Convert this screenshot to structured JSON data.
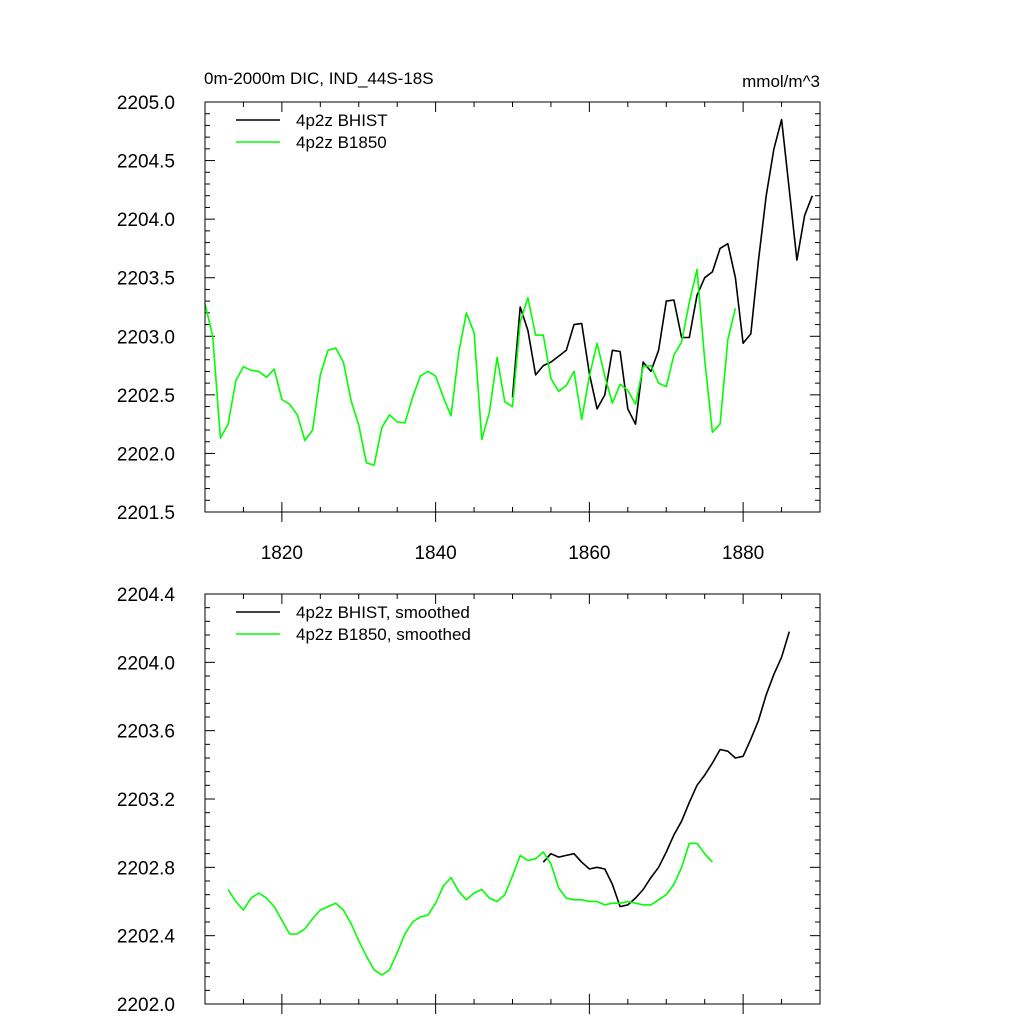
{
  "chart_data": [
    {
      "type": "line",
      "title": "0m-2000m DIC, IND_44S-18S",
      "units_label": "mmol/m^3",
      "xlabel": "",
      "ylabel": "",
      "xlim": [
        1810,
        1890
      ],
      "ylim": [
        2201.5,
        2205.0
      ],
      "x_ticks": [
        1820,
        1840,
        1860,
        1880
      ],
      "x_tick_labels": [
        "1820",
        "1840",
        "1860",
        "1880"
      ],
      "y_ticks": [
        2201.5,
        2202.0,
        2202.5,
        2203.0,
        2203.5,
        2204.0,
        2204.5,
        2205.0
      ],
      "y_tick_labels": [
        "2201.5",
        "2202.0",
        "2202.5",
        "2203.0",
        "2203.5",
        "2204.0",
        "2204.5",
        "2205.0"
      ],
      "grid": false,
      "legend_position": "top-left",
      "series": [
        {
          "name": "4p2z BHIST",
          "color": "#000000",
          "x": [
            1850,
            1851,
            1852,
            1853,
            1854,
            1855,
            1856,
            1857,
            1858,
            1859,
            1860,
            1861,
            1862,
            1863,
            1864,
            1865,
            1866,
            1867,
            1868,
            1869,
            1870,
            1871,
            1872,
            1873,
            1874,
            1875,
            1876,
            1877,
            1878,
            1879,
            1880,
            1881,
            1882,
            1883,
            1884,
            1885,
            1886,
            1887,
            1888,
            1889
          ],
          "values": [
            2202.48,
            2203.25,
            2203.05,
            2202.67,
            2202.75,
            2202.78,
            2202.83,
            2202.88,
            2203.1,
            2203.11,
            2202.68,
            2202.38,
            2202.5,
            2202.88,
            2202.87,
            2202.38,
            2202.25,
            2202.78,
            2202.7,
            2202.88,
            2203.3,
            2203.31,
            2202.99,
            2202.99,
            2203.35,
            2203.5,
            2203.55,
            2203.75,
            2203.79,
            2203.5,
            2202.94,
            2203.02,
            2203.65,
            2204.2,
            2204.6,
            2204.85,
            2204.25,
            2203.65,
            2204.03,
            2204.2
          ]
        },
        {
          "name": "4p2z B1850",
          "color": "#00ff00",
          "x": [
            1810,
            1811,
            1812,
            1813,
            1814,
            1815,
            1816,
            1817,
            1818,
            1819,
            1820,
            1821,
            1822,
            1823,
            1824,
            1825,
            1826,
            1827,
            1828,
            1829,
            1830,
            1831,
            1832,
            1833,
            1834,
            1835,
            1836,
            1837,
            1838,
            1839,
            1840,
            1841,
            1842,
            1843,
            1844,
            1845,
            1846,
            1847,
            1848,
            1849,
            1850,
            1851,
            1852,
            1853,
            1854,
            1855,
            1856,
            1857,
            1858,
            1859,
            1860,
            1861,
            1862,
            1863,
            1864,
            1865,
            1866,
            1867,
            1868,
            1869,
            1870,
            1871,
            1872,
            1873,
            1874,
            1875,
            1876,
            1877,
            1878,
            1879
          ],
          "values": [
            2203.28,
            2203.0,
            2202.13,
            2202.25,
            2202.62,
            2202.74,
            2202.71,
            2202.7,
            2202.65,
            2202.72,
            2202.46,
            2202.42,
            2202.33,
            2202.11,
            2202.2,
            2202.67,
            2202.88,
            2202.9,
            2202.78,
            2202.45,
            2202.24,
            2201.92,
            2201.9,
            2202.22,
            2202.33,
            2202.27,
            2202.26,
            2202.48,
            2202.66,
            2202.7,
            2202.66,
            2202.48,
            2202.32,
            2202.86,
            2203.2,
            2203.03,
            2202.12,
            2202.35,
            2202.82,
            2202.44,
            2202.4,
            2203.12,
            2203.33,
            2203.01,
            2203.01,
            2202.64,
            2202.53,
            2202.58,
            2202.7,
            2202.29,
            2202.66,
            2202.94,
            2202.66,
            2202.43,
            2202.59,
            2202.54,
            2202.42,
            2202.74,
            2202.75,
            2202.6,
            2202.57,
            2202.84,
            2202.95,
            2203.29,
            2203.57,
            2202.8,
            2202.18,
            2202.25,
            2202.97,
            2203.24
          ]
        }
      ]
    },
    {
      "type": "line",
      "title": "",
      "xlabel": "",
      "ylabel": "",
      "xlim": [
        1810,
        1890
      ],
      "ylim": [
        2202.0,
        2204.4
      ],
      "x_ticks": [
        1820,
        1840,
        1860,
        1880
      ],
      "y_ticks": [
        2202.0,
        2202.4,
        2202.8,
        2203.2,
        2203.6,
        2204.0,
        2204.4
      ],
      "y_tick_labels": [
        "2202.0",
        "2202.4",
        "2202.8",
        "2203.2",
        "2203.6",
        "2204.0",
        "2204.4"
      ],
      "grid": false,
      "legend_position": "top-left",
      "series": [
        {
          "name": "4p2z BHIST, smoothed",
          "color": "#000000",
          "x": [
            1854,
            1855,
            1856,
            1857,
            1858,
            1859,
            1860,
            1861,
            1862,
            1863,
            1864,
            1865,
            1866,
            1867,
            1868,
            1869,
            1870,
            1871,
            1872,
            1873,
            1874,
            1875,
            1876,
            1877,
            1878,
            1879,
            1880,
            1881,
            1882,
            1883,
            1884,
            1885,
            1886
          ],
          "values": [
            2202.83,
            2202.88,
            2202.86,
            2202.87,
            2202.88,
            2202.83,
            2202.79,
            2202.8,
            2202.79,
            2202.7,
            2202.57,
            2202.58,
            2202.62,
            2202.67,
            2202.74,
            2202.8,
            2202.89,
            2202.99,
            2203.07,
            2203.18,
            2203.28,
            2203.34,
            2203.41,
            2203.49,
            2203.48,
            2203.44,
            2203.45,
            2203.55,
            2203.66,
            2203.81,
            2203.93,
            2204.03,
            2204.18
          ]
        },
        {
          "name": "4p2z B1850, smoothed",
          "color": "#00ff00",
          "x": [
            1813,
            1814,
            1815,
            1816,
            1817,
            1818,
            1819,
            1820,
            1821,
            1822,
            1823,
            1824,
            1825,
            1826,
            1827,
            1828,
            1829,
            1830,
            1831,
            1832,
            1833,
            1834,
            1835,
            1836,
            1837,
            1838,
            1839,
            1840,
            1841,
            1842,
            1843,
            1844,
            1845,
            1846,
            1847,
            1848,
            1849,
            1850,
            1851,
            1852,
            1853,
            1854,
            1855,
            1856,
            1857,
            1858,
            1859,
            1860,
            1861,
            1862,
            1863,
            1864,
            1865,
            1866,
            1867,
            1868,
            1869,
            1870,
            1871,
            1872,
            1873,
            1874,
            1875,
            1876
          ],
          "values": [
            2202.67,
            2202.6,
            2202.55,
            2202.62,
            2202.65,
            2202.62,
            2202.57,
            2202.49,
            2202.41,
            2202.41,
            2202.44,
            2202.5,
            2202.55,
            2202.57,
            2202.59,
            2202.55,
            2202.47,
            2202.37,
            2202.28,
            2202.2,
            2202.17,
            2202.2,
            2202.3,
            2202.41,
            2202.48,
            2202.51,
            2202.52,
            2202.59,
            2202.69,
            2202.74,
            2202.66,
            2202.61,
            2202.65,
            2202.67,
            2202.62,
            2202.6,
            2202.64,
            2202.75,
            2202.87,
            2202.84,
            2202.85,
            2202.89,
            2202.82,
            2202.68,
            2202.62,
            2202.61,
            2202.61,
            2202.6,
            2202.6,
            2202.58,
            2202.59,
            2202.59,
            2202.6,
            2202.59,
            2202.58,
            2202.58,
            2202.61,
            2202.64,
            2202.7,
            2202.8,
            2202.94,
            2202.94,
            2202.88,
            2202.83
          ]
        }
      ]
    }
  ]
}
